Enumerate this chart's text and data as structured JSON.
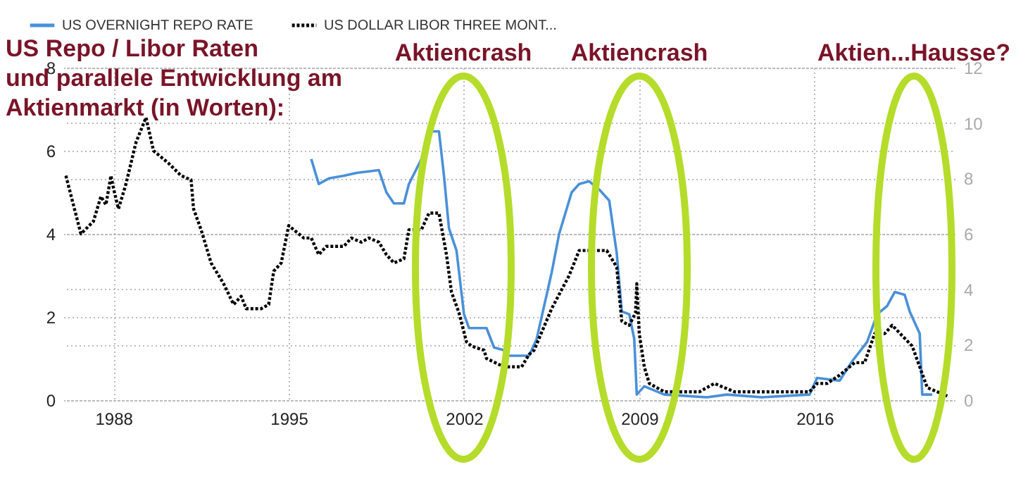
{
  "chart_data": {
    "type": "line",
    "title": "US Repo / Libor Raten\nund parallele Entwicklung am\nAktienmarkt (in Worten):",
    "annotations": [
      "Aktiencrash",
      "Aktiencrash",
      "Aktien...Hausse?"
    ],
    "xlim": [
      1986,
      2021.6
    ],
    "xticks": [
      1988,
      1995,
      2002,
      2009,
      2016
    ],
    "ylim": [
      0,
      8
    ],
    "yticks": [
      0,
      2,
      4,
      6,
      8
    ],
    "y2lim": [
      0,
      12
    ],
    "y2ticks": [
      0,
      2,
      4,
      6,
      8,
      10,
      12
    ],
    "grid": true,
    "legend": "top left",
    "marker": "none",
    "series": [
      {
        "name": "US OVERNIGHT REPO RATE",
        "color": "#4a90d9",
        "axis": "y2",
        "line_style": "solid",
        "x": [
          1995.9,
          1996.2,
          1996.6,
          1997.2,
          1997.7,
          1998.6,
          1998.9,
          1999.2,
          1999.6,
          1999.8,
          2000.3,
          2000.6,
          2001.0,
          2001.2,
          2001.4,
          2001.7,
          2002.0,
          2002.2,
          2002.9,
          2003.2,
          2003.6,
          2003.7,
          2004.6,
          2004.9,
          2005.5,
          2005.8,
          2006.3,
          2006.6,
          2007.0,
          2007.4,
          2007.8,
          2008.1,
          2008.3,
          2008.6,
          2008.8,
          2008.9,
          2009.2,
          2010.0,
          2011.7,
          2012.5,
          2013.9,
          2015.8,
          2016.1,
          2017.0,
          2017.5,
          2018.1,
          2018.5,
          2018.9,
          2019.2,
          2019.6,
          2019.8,
          2020.2,
          2020.3,
          2020.7
        ],
        "values": [
          8.7,
          7.8,
          8.0,
          8.1,
          8.2,
          8.3,
          7.5,
          7.1,
          7.1,
          7.8,
          8.7,
          9.7,
          9.7,
          8.1,
          6.2,
          5.4,
          3.1,
          2.6,
          2.6,
          1.9,
          1.8,
          1.6,
          1.6,
          2.2,
          4.6,
          6.0,
          7.5,
          7.8,
          7.9,
          7.6,
          7.2,
          5.3,
          3.2,
          3.1,
          2.2,
          0.2,
          0.5,
          0.2,
          0.1,
          0.2,
          0.1,
          0.2,
          0.8,
          0.7,
          1.4,
          2.1,
          3.1,
          3.4,
          3.9,
          3.8,
          3.2,
          2.4,
          0.2,
          0.2
        ]
      },
      {
        "name": "US DOLLAR LIBOR THREE MONT...",
        "color": "#000000",
        "line_style": "dotted",
        "x": [
          1986.1,
          1986.4,
          1986.7,
          1987.2,
          1987.5,
          1987.7,
          1987.9,
          1988.0,
          1988.2,
          1988.5,
          1988.9,
          1989.3,
          1989.6,
          1990.2,
          1990.7,
          1991.1,
          1991.2,
          1991.5,
          1991.9,
          1992.4,
          1992.8,
          1993.1,
          1993.3,
          1993.9,
          1994.2,
          1994.4,
          1994.7,
          1995.0,
          1995.6,
          1995.9,
          1996.2,
          1996.5,
          1997.2,
          1997.5,
          1997.9,
          1998.2,
          1998.6,
          1998.9,
          1999.2,
          1999.6,
          1999.8,
          2000.3,
          2000.6,
          2001.0,
          2001.3,
          2001.5,
          2001.8,
          2002.1,
          2002.3,
          2002.8,
          2002.9,
          2003.6,
          2004.3,
          2004.6,
          2004.8,
          2005.5,
          2006.2,
          2006.6,
          2007.0,
          2007.7,
          2008.1,
          2008.3,
          2008.6,
          2008.85,
          2008.9,
          2009.0,
          2009.2,
          2009.4,
          2010.0,
          2010.5,
          2011.4,
          2012.0,
          2012.8,
          2014.2,
          2015.8,
          2016.1,
          2016.5,
          2017.0,
          2017.6,
          2018.0,
          2018.4,
          2018.8,
          2019.1,
          2019.9,
          2020.2,
          2020.5,
          2021.3
        ],
        "values": [
          5.4,
          4.7,
          4.0,
          4.3,
          4.9,
          4.7,
          5.4,
          5.1,
          4.6,
          5.2,
          6.2,
          6.8,
          6.0,
          5.7,
          5.4,
          5.3,
          4.6,
          4.1,
          3.3,
          2.8,
          2.3,
          2.5,
          2.2,
          2.2,
          2.3,
          3.1,
          3.3,
          4.2,
          3.9,
          3.9,
          3.5,
          3.7,
          3.7,
          3.9,
          3.8,
          3.9,
          3.8,
          3.5,
          3.3,
          3.4,
          4.1,
          4.1,
          4.5,
          4.5,
          3.5,
          2.6,
          2.1,
          1.4,
          1.3,
          1.2,
          1.0,
          0.8,
          0.8,
          1.1,
          1.2,
          2.2,
          3.0,
          3.6,
          3.6,
          3.6,
          3.2,
          1.9,
          1.8,
          2.1,
          2.8,
          1.6,
          0.8,
          0.4,
          0.2,
          0.2,
          0.2,
          0.4,
          0.2,
          0.2,
          0.2,
          0.4,
          0.4,
          0.6,
          0.9,
          0.9,
          1.6,
          1.6,
          1.8,
          1.3,
          0.8,
          0.3,
          0.1
        ]
      }
    ]
  }
}
